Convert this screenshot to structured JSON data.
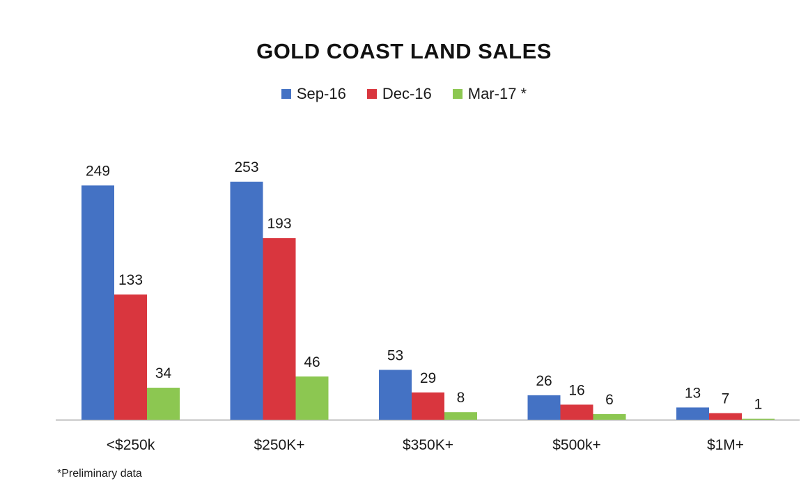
{
  "chart_data": {
    "type": "bar",
    "title": "GOLD COAST LAND SALES",
    "xlabel": "",
    "ylabel": "",
    "categories": [
      "<$250k",
      "$250K+",
      "$350K+",
      "$500k+",
      "$1M+"
    ],
    "series": [
      {
        "name": "Sep-16",
        "color": "#4472C4",
        "values": [
          249,
          253,
          53,
          26,
          13
        ]
      },
      {
        "name": "Dec-16",
        "color": "#D9363E",
        "values": [
          133,
          193,
          29,
          16,
          7
        ]
      },
      {
        "name": "Mar-17 *",
        "color": "#8CC751",
        "values": [
          34,
          46,
          8,
          6,
          1
        ]
      }
    ],
    "ylim": [
      0,
      253
    ],
    "grid": false,
    "legend": "top-center",
    "data_labels": true,
    "footnote": "*Preliminary data"
  }
}
